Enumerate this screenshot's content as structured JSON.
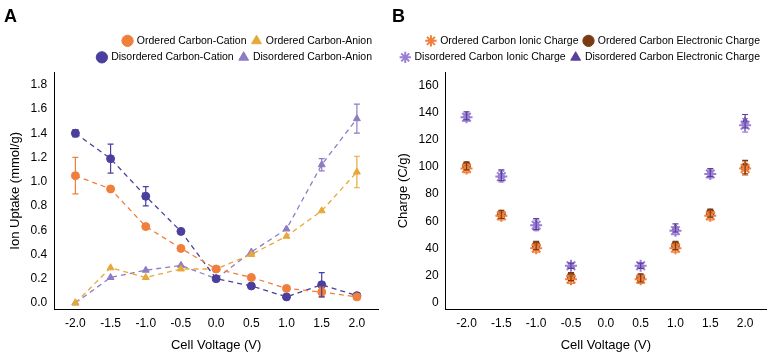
{
  "chart_data": [
    {
      "type": "line",
      "title": "A",
      "x": [
        -2,
        -1.5,
        -1,
        -0.5,
        0,
        0.5,
        1,
        1.5,
        2
      ],
      "x_label": "Cell Voltage (V)",
      "y_label": "Ion Uptake (mmol/g)",
      "xlim": [
        -2.3,
        2.3
      ],
      "xticks": [
        {
          "value": -2,
          "label": "-2.0"
        },
        -1.5,
        {
          "value": -1,
          "label": "-1.0"
        },
        -0.5,
        {
          "value": 0,
          "label": "0.0"
        },
        0.5,
        {
          "value": 1,
          "label": "1.0"
        },
        1.5,
        {
          "value": 2,
          "label": "2.0"
        }
      ],
      "ylim": [
        -0.05,
        1.9
      ],
      "yticks": [
        {
          "value": 0,
          "label": "0.0"
        },
        0.2,
        0.4,
        0.6,
        0.8,
        {
          "value": 1,
          "label": "1.0"
        },
        1.2,
        1.4,
        1.6,
        1.8
      ],
      "grid": false,
      "legend": "upper right",
      "series": [
        {
          "name": "Ordered Carbon-Cation",
          "color": "#f07f3c",
          "marker": "circle",
          "line_style": "dashed",
          "values": [
            1.05,
            0.94,
            0.63,
            0.45,
            0.28,
            0.21,
            0.12,
            0.09,
            0.05
          ],
          "errors": [
            0.15,
            null,
            null,
            null,
            null,
            null,
            null,
            0.04,
            null
          ]
        },
        {
          "name": "Ordered Carbon-Anion",
          "color": "#e8a838",
          "marker": "triangle",
          "line_style": "dashed",
          "values": [
            0.0,
            0.29,
            0.21,
            0.28,
            0.28,
            0.4,
            0.55,
            0.76,
            1.08
          ],
          "errors": [
            null,
            null,
            null,
            null,
            null,
            null,
            null,
            null,
            0.13
          ]
        },
        {
          "name": "Disordered Carbon-Cation",
          "color": "#4a3f9c",
          "marker": "circle",
          "line_style": "dashed",
          "values": [
            1.4,
            1.19,
            0.88,
            0.59,
            0.2,
            0.14,
            0.05,
            0.15,
            0.06
          ],
          "errors": [
            0.03,
            0.12,
            0.08,
            null,
            null,
            null,
            null,
            0.1,
            null
          ]
        },
        {
          "name": "Disordered Carbon-Anion",
          "color": "#8e7cc3",
          "marker": "triangle",
          "line_style": "dashed",
          "values": [
            0.0,
            0.21,
            0.27,
            0.31,
            0.2,
            0.42,
            0.61,
            1.14,
            1.52
          ],
          "errors": [
            null,
            null,
            null,
            null,
            null,
            null,
            null,
            0.05,
            0.12
          ]
        }
      ]
    },
    {
      "type": "scatter",
      "title": "B",
      "x": [
        -2,
        -1.5,
        -1,
        -0.5,
        0.5,
        1,
        1.5,
        2
      ],
      "x_label": "Cell Voltage (V)",
      "y_label": "Charge (C/g)",
      "xlim": [
        -2.3,
        2.3
      ],
      "xticks": [
        {
          "value": -2,
          "label": "-2.0"
        },
        -1.5,
        {
          "value": -1,
          "label": "-1.0"
        },
        -0.5,
        {
          "value": 0,
          "label": "0.0"
        },
        0.5,
        {
          "value": 1,
          "label": "1.0"
        },
        1.5,
        {
          "value": 2,
          "label": "2.0"
        }
      ],
      "ylim": [
        -5,
        170
      ],
      "yticks": [
        0,
        20,
        40,
        60,
        80,
        100,
        120,
        140,
        160
      ],
      "grid": false,
      "legend": "upper right",
      "series": [
        {
          "name": "Ordered Carbon Ionic Charge",
          "color": "#f07f3c",
          "marker": "star",
          "values": [
            99,
            64,
            40,
            17,
            17,
            40,
            64,
            99
          ],
          "errors": [
            3,
            3,
            3,
            3,
            3,
            3,
            3,
            5
          ]
        },
        {
          "name": "Ordered Carbon Electronic Charge",
          "color": "#7a3b12",
          "marker": "circle",
          "values": [
            101,
            65,
            42,
            19,
            18,
            42,
            66,
            100
          ],
          "errors": [
            3,
            3,
            3,
            3,
            3,
            3,
            3,
            5
          ]
        },
        {
          "name": "Disordered Carbon Ionic Charge",
          "color": "#9b7fd4",
          "marker": "star",
          "values": [
            137,
            93,
            57,
            27,
            27,
            53,
            95,
            131
          ],
          "errors": [
            3,
            4,
            4,
            2,
            2,
            3,
            3,
            5
          ]
        },
        {
          "name": "Disordered Carbon Electronic Charge",
          "color": "#5a3f9e",
          "marker": "triangle",
          "values": [
            138,
            94,
            58,
            27,
            27,
            55,
            96,
            134
          ],
          "errors": [
            3,
            4,
            4,
            2,
            2,
            3,
            3,
            5
          ]
        }
      ]
    }
  ]
}
